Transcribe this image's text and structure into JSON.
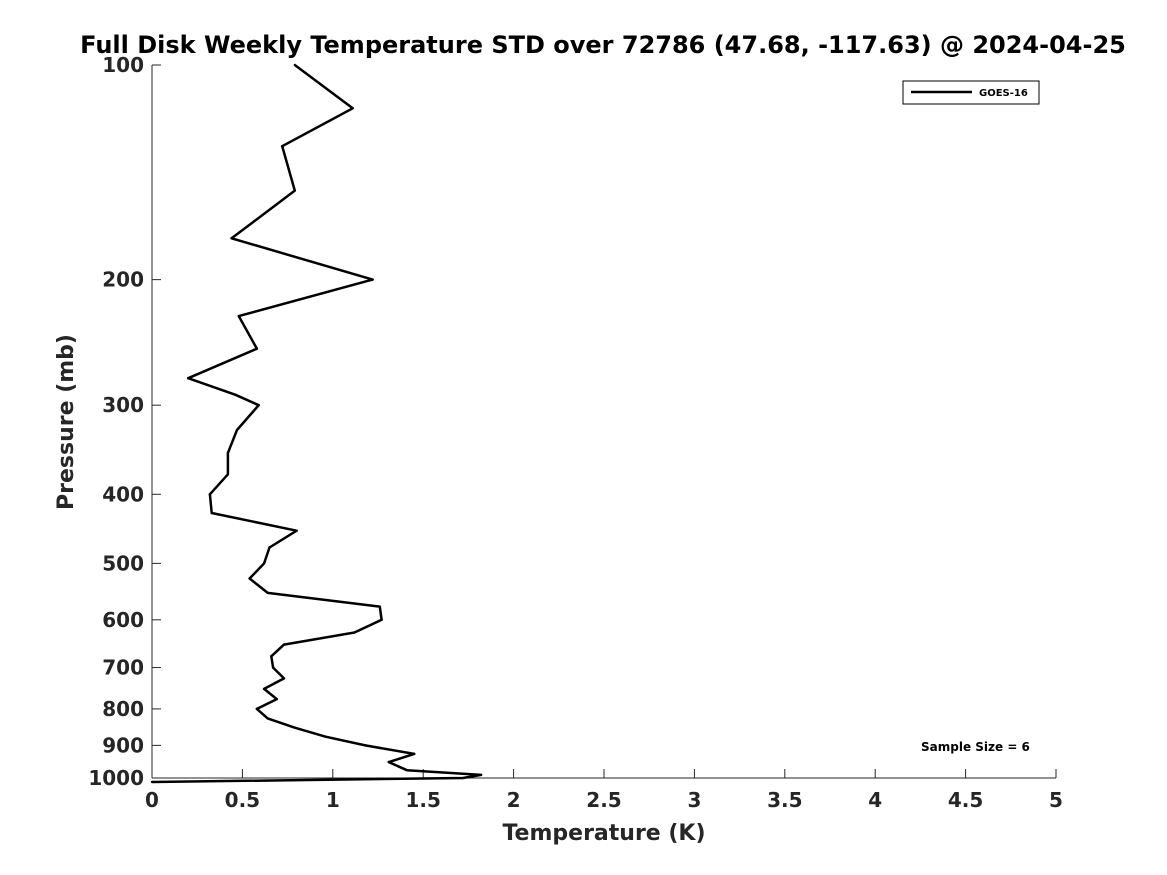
{
  "chart_data": {
    "type": "line",
    "title": "Full Disk Weekly Temperature STD over 72786 (47.68, -117.63) @ 2024-04-25",
    "xlabel": "Temperature (K)",
    "ylabel": "Pressure (mb)",
    "xlim": [
      0,
      5
    ],
    "ylim": [
      100,
      1000
    ],
    "yscale": "log",
    "y_reversed": true,
    "x_ticks": [
      0,
      0.5,
      1,
      1.5,
      2,
      2.5,
      3,
      3.5,
      4,
      4.5,
      5
    ],
    "x_tick_labels": [
      "0",
      "0.5",
      "1",
      "1.5",
      "2",
      "2.5",
      "3",
      "3.5",
      "4",
      "4.5",
      "5"
    ],
    "y_ticks": [
      100,
      200,
      300,
      400,
      500,
      600,
      700,
      800,
      900,
      1000
    ],
    "y_tick_labels": [
      "100",
      "200",
      "300",
      "400",
      "500",
      "600",
      "700",
      "800",
      "900",
      "1000"
    ],
    "grid": false,
    "legend_position": "top-right",
    "series": [
      {
        "name": "GOES-16",
        "color": "#000000",
        "points": [
          [
            0.79,
            100
          ],
          [
            1.11,
            115
          ],
          [
            0.72,
            130
          ],
          [
            0.79,
            150
          ],
          [
            0.44,
            175
          ],
          [
            1.22,
            200
          ],
          [
            0.48,
            225
          ],
          [
            0.58,
            250
          ],
          [
            0.2,
            275
          ],
          [
            0.46,
            290
          ],
          [
            0.59,
            300
          ],
          [
            0.47,
            325
          ],
          [
            0.42,
            350
          ],
          [
            0.42,
            375
          ],
          [
            0.32,
            400
          ],
          [
            0.33,
            425
          ],
          [
            0.8,
            450
          ],
          [
            0.65,
            475
          ],
          [
            0.62,
            500
          ],
          [
            0.54,
            525
          ],
          [
            0.64,
            550
          ],
          [
            1.26,
            575
          ],
          [
            1.27,
            600
          ],
          [
            1.12,
            625
          ],
          [
            0.73,
            650
          ],
          [
            0.66,
            675
          ],
          [
            0.67,
            700
          ],
          [
            0.73,
            725
          ],
          [
            0.62,
            750
          ],
          [
            0.69,
            775
          ],
          [
            0.58,
            800
          ],
          [
            0.64,
            825
          ],
          [
            0.79,
            850
          ],
          [
            0.96,
            875
          ],
          [
            1.18,
            900
          ],
          [
            1.45,
            925
          ],
          [
            1.31,
            950
          ],
          [
            1.41,
            975
          ],
          [
            1.82,
            990
          ],
          [
            1.72,
            1000
          ],
          [
            0.0,
            1013
          ]
        ]
      }
    ],
    "annotations": [
      {
        "text": "Sample Size = 6",
        "position": "bottom-right"
      }
    ]
  }
}
